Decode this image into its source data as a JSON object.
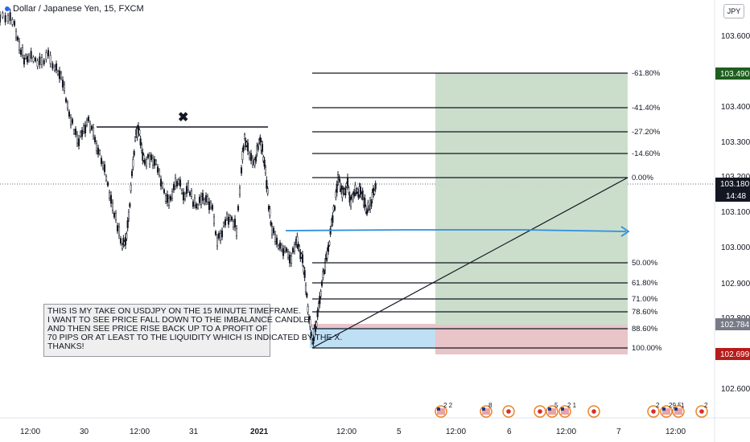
{
  "header": {
    "symbol_title": "Dollar / Japanese Yen, 15, FXCM",
    "currency": "JPY"
  },
  "price_axis": {
    "ticks": [
      "103.600",
      "103.400",
      "103.300",
      "103.200",
      "103.100",
      "103.000",
      "102.900",
      "102.800",
      "102.600"
    ],
    "tags": [
      {
        "label": "103.490",
        "color": "#1e5e1e"
      },
      {
        "label": "103.180",
        "color": "#131722"
      },
      {
        "label": "14:48",
        "color": "#131722"
      },
      {
        "label": "102.784",
        "color": "#787b86"
      },
      {
        "label": "102.699",
        "color": "#b71c1c"
      }
    ]
  },
  "time_axis": {
    "ticks": [
      "12:00",
      "30",
      "12:00",
      "31",
      "2021",
      "12:00",
      "5",
      "12:00",
      "6",
      "12:00",
      "7",
      "12:00"
    ]
  },
  "fib_levels": [
    "-61.80%",
    "-41.40%",
    "-27.20%",
    "-14.60%",
    "0.00%",
    "50.00%",
    "61.80%",
    "71.00%",
    "78.60%",
    "88.60%",
    "100.00%"
  ],
  "annotation": {
    "cross_mark": "✖",
    "lines": [
      "THIS IS MY TAKE ON USDJPY ON THE 15 MINUTE TIMEFRAME.",
      "I WANT TO SEE PRICE FALL DOWN TO THE IMBALANCE CANDLE",
      "AND THEN SEE PRICE RISE BACK UP TO A PROFIT OF",
      "70 PIPS OR AT LEAST TO THE LIQUIDITY WHICH IS INDICATED BY THE X.",
      "THANKS!"
    ]
  },
  "events": [
    {
      "count": "2",
      "extra": "2",
      "icon": "us-flag-icon"
    },
    {
      "count": "8",
      "extra": "",
      "icon": "us-flag-icon"
    },
    {
      "count": "",
      "extra": "",
      "icon": "jp-flag-icon"
    },
    {
      "count": "",
      "extra": "",
      "icon": "jp-flag-icon"
    },
    {
      "count": "5",
      "extra": "",
      "icon": "us-flag-icon"
    },
    {
      "count": "2",
      "extra": "1",
      "icon": "us-flag-icon"
    },
    {
      "count": "",
      "extra": "",
      "icon": "jp-flag-icon"
    },
    {
      "count": "2",
      "extra": "",
      "icon": "jp-flag-icon"
    },
    {
      "count": "29",
      "extra": "5",
      "icon": "us-flag-icon"
    },
    {
      "count": "1",
      "extra": "",
      "icon": "us-flag-icon"
    },
    {
      "count": "2",
      "extra": "",
      "icon": "jp-flag-icon"
    }
  ],
  "colors": {
    "bullish_zone": "#c8dcc8",
    "bearish_zone": "#e9c4c8",
    "imbalance_zone": "#bfe0f4",
    "trend_line": "#2f8fe0"
  }
}
